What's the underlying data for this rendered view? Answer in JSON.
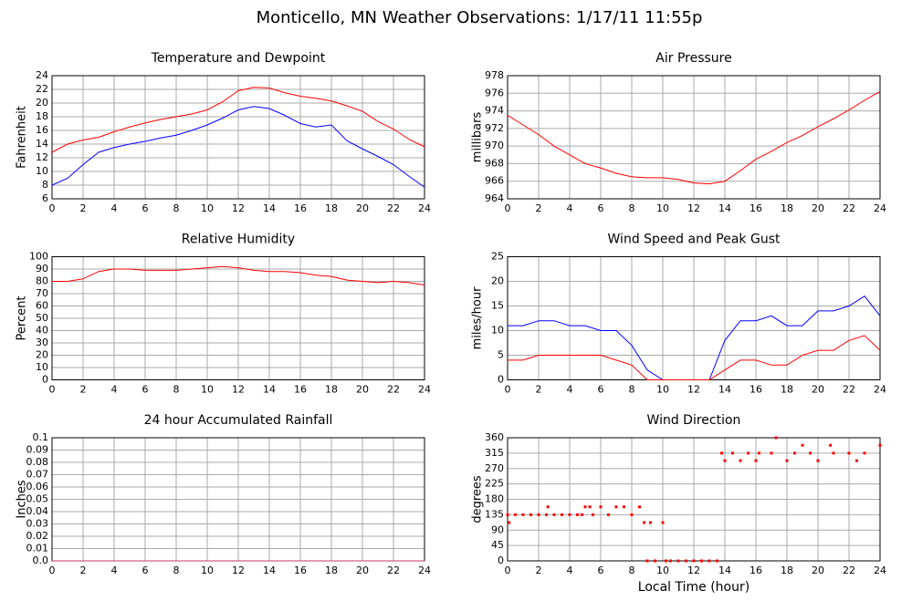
{
  "title": "Monticello, MN Weather Observations: 1/17/11 11:55p",
  "chart_data": [
    {
      "type": "line",
      "title": "Temperature and Dewpoint",
      "ylabel": "Fahrenheit",
      "x": [
        0,
        1,
        2,
        3,
        4,
        5,
        6,
        7,
        8,
        9,
        10,
        11,
        12,
        13,
        14,
        15,
        16,
        17,
        18,
        19,
        20,
        21,
        22,
        23,
        24
      ],
      "series": [
        {
          "color": "#ff0000",
          "values": [
            12.8,
            14,
            14.6,
            15,
            15.8,
            16.5,
            17.1,
            17.6,
            18,
            18.4,
            19,
            20.2,
            21.8,
            22.3,
            22.2,
            21.5,
            21,
            20.7,
            20.3,
            19.6,
            18.8,
            17.3,
            16.2,
            14.7,
            13.6
          ]
        },
        {
          "color": "#0000ff",
          "values": [
            8,
            9,
            11,
            12.8,
            13.5,
            14,
            14.4,
            14.9,
            15.3,
            16,
            16.8,
            17.8,
            19,
            19.5,
            19.2,
            18.2,
            17,
            16.5,
            16.8,
            14.5,
            13.3,
            12.2,
            11,
            9.3,
            7.7
          ]
        }
      ],
      "xlim": [
        0,
        24
      ],
      "xticks": [
        0,
        2,
        4,
        6,
        8,
        10,
        12,
        14,
        16,
        18,
        20,
        22,
        24
      ],
      "ylim": [
        6,
        24
      ],
      "yticks": [
        6,
        8,
        10,
        12,
        14,
        16,
        18,
        20,
        22,
        24
      ],
      "grid": true
    },
    {
      "type": "line",
      "title": "Air Pressure",
      "ylabel": "millibars",
      "x": [
        0,
        1,
        2,
        3,
        4,
        5,
        6,
        7,
        8,
        9,
        10,
        11,
        12,
        13,
        14,
        15,
        16,
        17,
        18,
        19,
        20,
        21,
        22,
        23,
        24
      ],
      "series": [
        {
          "color": "#ff0000",
          "values": [
            973.5,
            972.4,
            971.3,
            970,
            969,
            968,
            967.5,
            966.9,
            966.5,
            966.4,
            966.4,
            966.2,
            965.8,
            965.7,
            966,
            967.2,
            968.5,
            969.4,
            970.4,
            971.2,
            972.2,
            973.1,
            974.1,
            975.2,
            976.2
          ]
        }
      ],
      "xlim": [
        0,
        24
      ],
      "xticks": [
        0,
        2,
        4,
        6,
        8,
        10,
        12,
        14,
        16,
        18,
        20,
        22,
        24
      ],
      "ylim": [
        964,
        978
      ],
      "yticks": [
        964,
        966,
        968,
        970,
        972,
        974,
        976,
        978
      ],
      "grid": true
    },
    {
      "type": "line",
      "title": "Relative Humidity",
      "ylabel": "Percent",
      "x": [
        0,
        1,
        2,
        3,
        4,
        5,
        6,
        7,
        8,
        9,
        10,
        11,
        12,
        13,
        14,
        15,
        16,
        17,
        18,
        19,
        20,
        21,
        22,
        23,
        24
      ],
      "series": [
        {
          "color": "#ff0000",
          "values": [
            80,
            80,
            82,
            88,
            90,
            90,
            89,
            89,
            89,
            90,
            91,
            92,
            91,
            89,
            88,
            88,
            87,
            85,
            84,
            81,
            80,
            79,
            80,
            79,
            77
          ]
        }
      ],
      "xlim": [
        0,
        24
      ],
      "xticks": [
        0,
        2,
        4,
        6,
        8,
        10,
        12,
        14,
        16,
        18,
        20,
        22,
        24
      ],
      "ylim": [
        0,
        100
      ],
      "yticks": [
        0,
        10,
        20,
        30,
        40,
        50,
        60,
        70,
        80,
        90,
        100
      ],
      "grid": true
    },
    {
      "type": "line",
      "title": "Wind Speed and Peak Gust",
      "ylabel": "miles/hour",
      "x": [
        0,
        1,
        2,
        3,
        4,
        5,
        6,
        7,
        8,
        9,
        10,
        11,
        12,
        13,
        14,
        15,
        16,
        17,
        18,
        19,
        20,
        21,
        22,
        23,
        24
      ],
      "series": [
        {
          "color": "#0000ff",
          "values": [
            11,
            11,
            12,
            12,
            11,
            11,
            10,
            10,
            7,
            2,
            0,
            0,
            0,
            0,
            8,
            12,
            12,
            13,
            11,
            11,
            14,
            14,
            15,
            17,
            13
          ]
        },
        {
          "color": "#ff0000",
          "values": [
            4,
            4,
            5,
            5,
            5,
            5,
            5,
            4,
            3,
            0,
            0,
            0,
            0,
            0,
            2,
            4,
            4,
            3,
            3,
            5,
            6,
            6,
            8,
            9,
            6
          ]
        }
      ],
      "xlim": [
        0,
        24
      ],
      "xticks": [
        0,
        2,
        4,
        6,
        8,
        10,
        12,
        14,
        16,
        18,
        20,
        22,
        24
      ],
      "ylim": [
        0,
        25
      ],
      "yticks": [
        0,
        5,
        10,
        15,
        20,
        25
      ],
      "grid": true
    },
    {
      "type": "line",
      "title": "24 hour Accumulated Rainfall",
      "ylabel": "Inches",
      "x": [
        0,
        24
      ],
      "series": [
        {
          "color": "#cc3366",
          "values": [
            0,
            0
          ]
        }
      ],
      "xlim": [
        0,
        24
      ],
      "xticks": [
        0,
        2,
        4,
        6,
        8,
        10,
        12,
        14,
        16,
        18,
        20,
        22,
        24
      ],
      "ylim": [
        0,
        0.1
      ],
      "yticks": [
        {
          "value": 0,
          "label": "0.0"
        },
        0.01,
        0.02,
        0.03,
        0.04,
        0.05,
        0.06,
        0.07,
        0.08,
        0.09,
        0.1
      ],
      "grid": true
    },
    {
      "type": "scatter",
      "title": "Wind Direction",
      "ylabel": "degrees",
      "xlabel": "Local Time (hour)",
      "x": [
        0,
        0.1,
        0.5,
        1,
        1.5,
        2,
        2.5,
        2.6,
        3,
        3.5,
        4,
        4.5,
        4.8,
        5,
        5.3,
        5.5,
        6,
        6.5,
        7,
        7.5,
        8,
        8.5,
        8.8,
        9,
        9.2,
        9.5,
        10,
        10.2,
        10.5,
        11,
        11.5,
        12,
        12.5,
        13,
        13.5,
        13.8,
        14,
        14.5,
        15,
        15.5,
        16,
        16.2,
        17,
        17.3,
        18,
        18.5,
        19,
        19.5,
        20,
        20.8,
        21,
        22,
        22.5,
        23,
        24
      ],
      "series": [
        {
          "color": "#ff0000",
          "values": [
            135,
            112,
            135,
            135,
            135,
            135,
            135,
            158,
            135,
            135,
            135,
            135,
            135,
            158,
            158,
            135,
            158,
            135,
            158,
            158,
            135,
            158,
            112,
            0,
            112,
            0,
            112,
            0,
            0,
            0,
            0,
            0,
            0,
            0,
            0,
            315,
            293,
            315,
            293,
            315,
            293,
            315,
            315,
            360,
            293,
            315,
            338,
            315,
            293,
            338,
            315,
            315,
            293,
            315,
            338
          ]
        }
      ],
      "xlim": [
        0,
        24
      ],
      "xticks": [
        0,
        2,
        4,
        6,
        8,
        10,
        12,
        14,
        16,
        18,
        20,
        22,
        24
      ],
      "ylim": [
        0,
        360
      ],
      "yticks": [
        0,
        45,
        90,
        135,
        180,
        225,
        270,
        315,
        360
      ],
      "grid": true
    }
  ]
}
